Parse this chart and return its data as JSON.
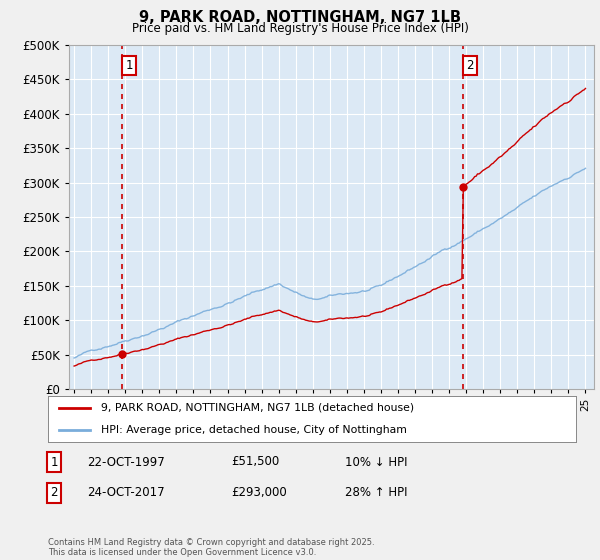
{
  "title": "9, PARK ROAD, NOTTINGHAM, NG7 1LB",
  "subtitle": "Price paid vs. HM Land Registry's House Price Index (HPI)",
  "legend_line1": "9, PARK ROAD, NOTTINGHAM, NG7 1LB (detached house)",
  "legend_line2": "HPI: Average price, detached house, City of Nottingham",
  "sale1_label": "1",
  "sale1_date": "22-OCT-1997",
  "sale1_price": "£51,500",
  "sale1_hpi": "10% ↓ HPI",
  "sale2_label": "2",
  "sale2_date": "24-OCT-2017",
  "sale2_price": "£293,000",
  "sale2_hpi": "28% ↑ HPI",
  "footnote": "Contains HM Land Registry data © Crown copyright and database right 2025.\nThis data is licensed under the Open Government Licence v3.0.",
  "sale_color": "#cc0000",
  "hpi_color": "#7aaddb",
  "dashed_line_color": "#cc0000",
  "background_color": "#f0f0f0",
  "plot_bg_color": "#dce9f5",
  "ylim": [
    0,
    500000
  ],
  "yticks": [
    0,
    50000,
    100000,
    150000,
    200000,
    250000,
    300000,
    350000,
    400000,
    450000,
    500000
  ],
  "sale1_year": 1997.8,
  "sale1_value": 51500,
  "sale2_year": 2017.8,
  "sale2_value": 293000,
  "xstart": 1995,
  "xend": 2025
}
